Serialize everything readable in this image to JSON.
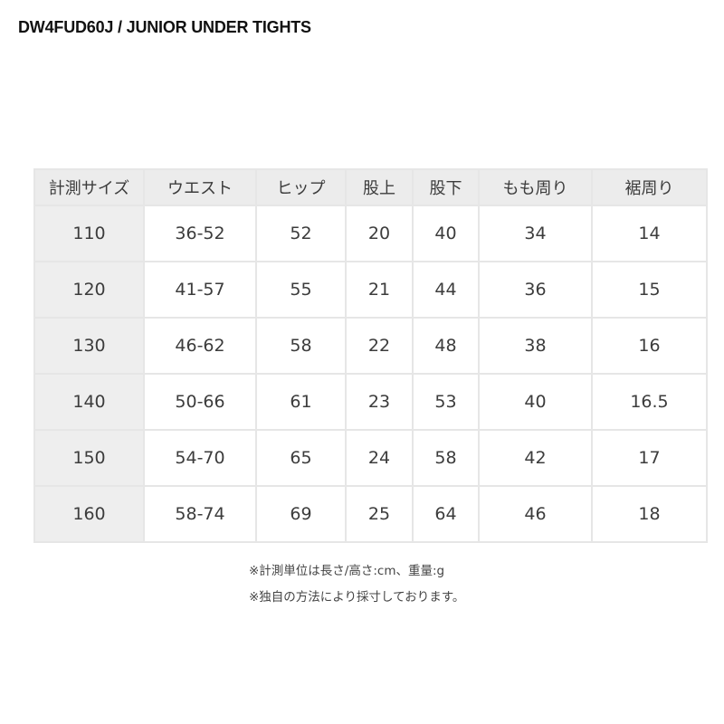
{
  "title": "DW4FUD60J / JUNIOR UNDER TIGHTS",
  "table": {
    "headers": [
      "計測サイズ",
      "ウエスト",
      "ヒップ",
      "股上",
      "股下",
      "もも周り",
      "裾周り"
    ],
    "rows": [
      [
        "110",
        "36-52",
        "52",
        "20",
        "40",
        "34",
        "14"
      ],
      [
        "120",
        "41-57",
        "55",
        "21",
        "44",
        "36",
        "15"
      ],
      [
        "130",
        "46-62",
        "58",
        "22",
        "48",
        "38",
        "16"
      ],
      [
        "140",
        "50-66",
        "61",
        "23",
        "53",
        "40",
        "16.5"
      ],
      [
        "150",
        "54-70",
        "65",
        "24",
        "58",
        "42",
        "17"
      ],
      [
        "160",
        "58-74",
        "69",
        "25",
        "64",
        "46",
        "18"
      ]
    ]
  },
  "notes": [
    "※計測単位は長さ/高さ:cm、重量:g",
    "※独自の方法により採寸しております。"
  ]
}
